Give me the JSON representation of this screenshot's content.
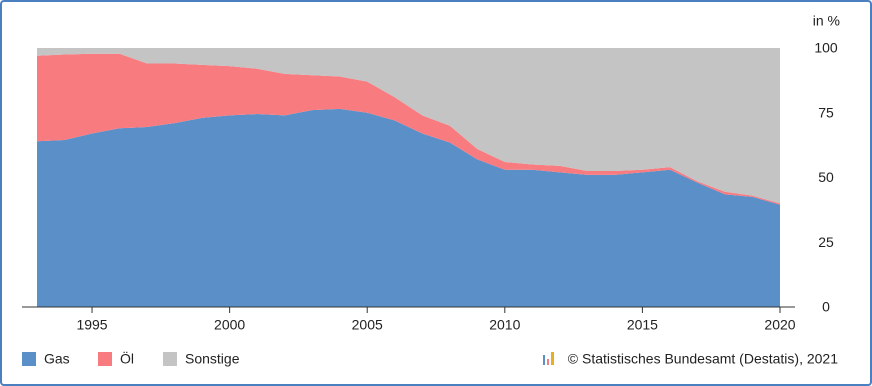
{
  "chart_data": {
    "type": "stacked_area",
    "y_unit_label": "in %",
    "x": [
      1993,
      1994,
      1995,
      1996,
      1997,
      1998,
      1999,
      2000,
      2001,
      2002,
      2003,
      2004,
      2005,
      2006,
      2007,
      2008,
      2009,
      2010,
      2011,
      2012,
      2013,
      2014,
      2015,
      2016,
      2017,
      2018,
      2019,
      2020
    ],
    "series": [
      {
        "name": "Gas",
        "color": "#5a8fc8",
        "values": [
          64,
          64.5,
          67,
          69,
          69.5,
          71,
          73,
          74,
          74.5,
          74,
          76,
          76.5,
          75,
          72,
          67,
          63.5,
          57,
          53,
          53,
          52,
          51,
          51,
          52,
          53,
          48,
          43.5,
          42.5,
          39.5
        ]
      },
      {
        "name": "Öl",
        "color": "#f87b80",
        "values": [
          33,
          33,
          30.8,
          28.8,
          24.5,
          23,
          20.5,
          19,
          17.5,
          16,
          13.5,
          12.5,
          12,
          9,
          7,
          6.5,
          4,
          3,
          2,
          2.5,
          1.5,
          1.5,
          1,
          1,
          0.5,
          1,
          0.5,
          0.5
        ]
      },
      {
        "name": "Sonstige",
        "color": "#c4c4c4",
        "values": [
          3,
          2.5,
          2.2,
          2.2,
          6,
          6,
          6.5,
          7,
          8,
          10,
          10.5,
          11,
          13,
          19,
          26,
          30,
          39,
          44,
          45,
          45.5,
          47.5,
          47.5,
          47,
          46,
          51.5,
          55.5,
          57,
          60
        ]
      }
    ],
    "xlim": [
      1993,
      2020
    ],
    "xticks": [
      1995,
      2000,
      2005,
      2010,
      2015,
      2020
    ],
    "ylim": [
      0,
      100
    ],
    "yticks": [
      0,
      25,
      50,
      75,
      100
    ],
    "legend": "bottom-left",
    "source": "© Statistisches Bundesamt (Destatis), 2021"
  }
}
